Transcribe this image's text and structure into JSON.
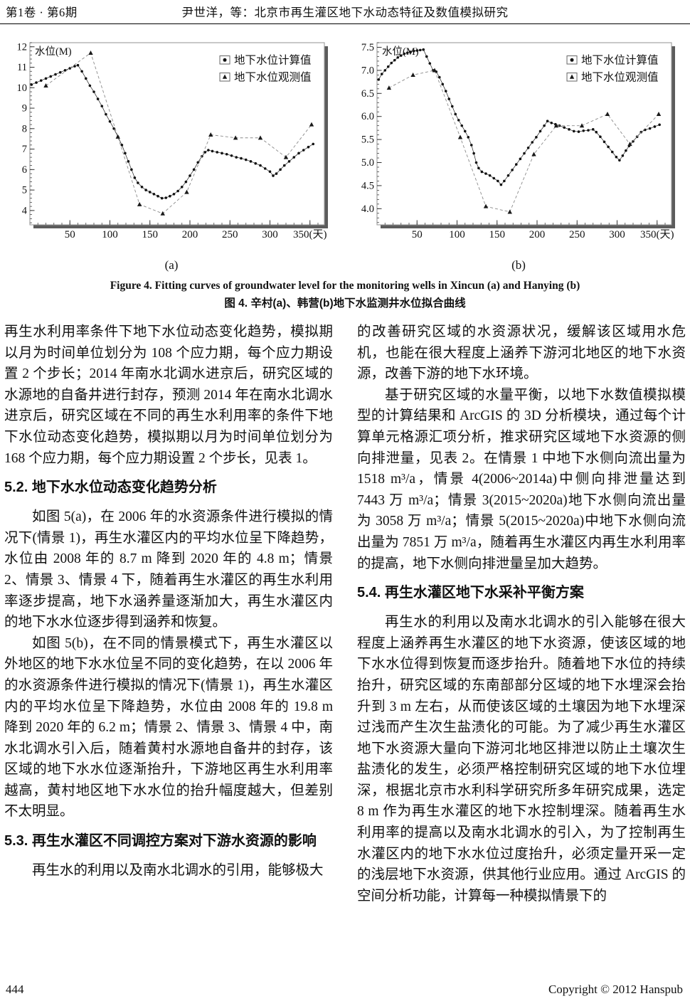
{
  "header": {
    "issue": "第1卷 · 第6期",
    "running_title": "尹世洋，等：北京市再生灌区地下水动态特征及数值模拟研究"
  },
  "figure": {
    "caption_en": "Figure 4. Fitting curves of groundwater level for the monitoring wells in Xincun (a) and Hanying (b)",
    "caption_zh": "图 4. 辛村(a)、韩营(b)地下水监测井水位拟合曲线"
  },
  "colors": {
    "frame": "#9a9a9a",
    "shadow": "#5c5c5c",
    "calculated": "#111111",
    "observed": "#1a1a1a",
    "dash_line": "#8a8a8a",
    "text": "#111111"
  },
  "chart_data": [
    {
      "type": "line",
      "title": "",
      "sublabel": "(a)",
      "ylabel": "水位(M)",
      "xlabel": "天",
      "xlim": [
        0,
        368
      ],
      "ylim": [
        3.3,
        12.2
      ],
      "xticks": [
        50,
        100,
        150,
        200,
        250,
        300,
        350
      ],
      "xtick_labels": [
        "50",
        "100",
        "150",
        "200",
        "250",
        "300",
        "350(天)"
      ],
      "yticks": [
        4,
        5,
        6,
        7,
        8,
        9,
        10,
        11,
        12
      ],
      "ytick_labels": [
        "4",
        "5",
        "6",
        "7",
        "8",
        "9",
        "10",
        "11",
        "12"
      ],
      "x_minor_step": 10,
      "y_minor_step": 0.2,
      "grid": false,
      "legend_position": "upper-right-inside",
      "legend": [
        {
          "marker": "dot",
          "label": "地下水位计算值"
        },
        {
          "marker": "triangle",
          "label": "地下水位观测值"
        }
      ],
      "series": [
        {
          "name": "地下水位计算值",
          "style": "dots",
          "points": [
            [
              2,
              10.15
            ],
            [
              8,
              10.25
            ],
            [
              14,
              10.35
            ],
            [
              20,
              10.45
            ],
            [
              26,
              10.55
            ],
            [
              32,
              10.65
            ],
            [
              38,
              10.75
            ],
            [
              44,
              10.85
            ],
            [
              50,
              10.95
            ],
            [
              56,
              11.05
            ],
            [
              60,
              11.1
            ],
            [
              65,
              10.8
            ],
            [
              70,
              10.45
            ],
            [
              75,
              10.1
            ],
            [
              80,
              9.8
            ],
            [
              85,
              9.45
            ],
            [
              90,
              9.1
            ],
            [
              95,
              8.7
            ],
            [
              100,
              8.35
            ],
            [
              105,
              8.0
            ],
            [
              110,
              7.6
            ],
            [
              115,
              7.2
            ],
            [
              119,
              6.8
            ],
            [
              123,
              6.4
            ],
            [
              127,
              6.0
            ],
            [
              131,
              5.6
            ],
            [
              135,
              5.35
            ],
            [
              140,
              5.15
            ],
            [
              145,
              5.0
            ],
            [
              150,
              4.9
            ],
            [
              155,
              4.8
            ],
            [
              160,
              4.7
            ],
            [
              165,
              4.6
            ],
            [
              170,
              4.62
            ],
            [
              175,
              4.7
            ],
            [
              180,
              4.8
            ],
            [
              185,
              4.95
            ],
            [
              190,
              5.15
            ],
            [
              195,
              5.4
            ],
            [
              200,
              5.7
            ],
            [
              205,
              6.0
            ],
            [
              210,
              6.35
            ],
            [
              215,
              6.65
            ],
            [
              219,
              6.85
            ],
            [
              223,
              6.95
            ],
            [
              228,
              6.9
            ],
            [
              234,
              6.85
            ],
            [
              240,
              6.8
            ],
            [
              246,
              6.75
            ],
            [
              252,
              6.68
            ],
            [
              258,
              6.6
            ],
            [
              264,
              6.55
            ],
            [
              270,
              6.48
            ],
            [
              276,
              6.4
            ],
            [
              282,
              6.3
            ],
            [
              288,
              6.2
            ],
            [
              294,
              6.05
            ],
            [
              300,
              5.9
            ],
            [
              304,
              5.7
            ],
            [
              308,
              5.8
            ],
            [
              313,
              6.0
            ],
            [
              318,
              6.2
            ],
            [
              324,
              6.4
            ],
            [
              330,
              6.6
            ],
            [
              336,
              6.8
            ],
            [
              342,
              6.95
            ],
            [
              348,
              7.1
            ],
            [
              354,
              7.25
            ]
          ]
        },
        {
          "name": "地下水位观测值",
          "style": "dashed-triangles",
          "points": [
            [
              20,
              10.1
            ],
            [
              76,
              11.7
            ],
            [
              110,
              7.6
            ],
            [
              137,
              4.3
            ],
            [
              166,
              3.85
            ],
            [
              196,
              4.9
            ],
            [
              226,
              7.7
            ],
            [
              257,
              7.55
            ],
            [
              288,
              7.55
            ],
            [
              320,
              6.6
            ],
            [
              352,
              8.2
            ]
          ]
        }
      ]
    },
    {
      "type": "line",
      "title": "",
      "sublabel": "(b)",
      "ylabel": "水位(M)",
      "xlabel": "天",
      "xlim": [
        0,
        368
      ],
      "ylim": [
        3.65,
        7.6
      ],
      "xticks": [
        50,
        100,
        150,
        200,
        250,
        300,
        350
      ],
      "xtick_labels": [
        "50",
        "100",
        "150",
        "200",
        "250",
        "300",
        "350(天)"
      ],
      "yticks": [
        4.0,
        4.5,
        5.0,
        5.5,
        6.0,
        6.5,
        7.0,
        7.5
      ],
      "ytick_labels": [
        "4.0",
        "4.5",
        "5.0",
        "5.5",
        "6.0",
        "6.5",
        "7.0",
        "7.5"
      ],
      "x_minor_step": 10,
      "y_minor_step": 0.1,
      "grid": false,
      "legend_position": "upper-right-inside",
      "legend": [
        {
          "marker": "dot",
          "label": "地下水位计算值"
        },
        {
          "marker": "triangle",
          "label": "地下水位观测值"
        }
      ],
      "series": [
        {
          "name": "地下水位计算值",
          "style": "dots",
          "points": [
            [
              2,
              6.8
            ],
            [
              6,
              6.92
            ],
            [
              10,
              7.0
            ],
            [
              14,
              7.08
            ],
            [
              18,
              7.16
            ],
            [
              22,
              7.22
            ],
            [
              26,
              7.28
            ],
            [
              30,
              7.32
            ],
            [
              34,
              7.36
            ],
            [
              38,
              7.38
            ],
            [
              42,
              7.4
            ],
            [
              46,
              7.42
            ],
            [
              50,
              7.43
            ],
            [
              54,
              7.44
            ],
            [
              58,
              7.45
            ],
            [
              62,
              7.3
            ],
            [
              66,
              7.15
            ],
            [
              70,
              7.0
            ],
            [
              74,
              6.97
            ],
            [
              78,
              6.85
            ],
            [
              82,
              6.7
            ],
            [
              86,
              6.55
            ],
            [
              90,
              6.38
            ],
            [
              94,
              6.22
            ],
            [
              98,
              6.05
            ],
            [
              102,
              5.92
            ],
            [
              106,
              5.8
            ],
            [
              110,
              5.68
            ],
            [
              114,
              5.55
            ],
            [
              118,
              5.38
            ],
            [
              121,
              5.2
            ],
            [
              124,
              5.0
            ],
            [
              127,
              4.88
            ],
            [
              131,
              4.8
            ],
            [
              136,
              4.76
            ],
            [
              141,
              4.72
            ],
            [
              146,
              4.66
            ],
            [
              151,
              4.6
            ],
            [
              155,
              4.52
            ],
            [
              159,
              4.6
            ],
            [
              164,
              4.72
            ],
            [
              169,
              4.84
            ],
            [
              174,
              4.96
            ],
            [
              179,
              5.08
            ],
            [
              184,
              5.2
            ],
            [
              189,
              5.32
            ],
            [
              194,
              5.44
            ],
            [
              199,
              5.55
            ],
            [
              204,
              5.68
            ],
            [
              209,
              5.8
            ],
            [
              213,
              5.9
            ],
            [
              218,
              5.86
            ],
            [
              223,
              5.83
            ],
            [
              228,
              5.8
            ],
            [
              234,
              5.76
            ],
            [
              240,
              5.72
            ],
            [
              246,
              5.68
            ],
            [
              252,
              5.67
            ],
            [
              258,
              5.69
            ],
            [
              264,
              5.7
            ],
            [
              270,
              5.72
            ],
            [
              274,
              5.66
            ],
            [
              279,
              5.56
            ],
            [
              284,
              5.45
            ],
            [
              289,
              5.34
            ],
            [
              294,
              5.23
            ],
            [
              299,
              5.12
            ],
            [
              303,
              5.05
            ],
            [
              307,
              5.15
            ],
            [
              311,
              5.26
            ],
            [
              315,
              5.36
            ],
            [
              320,
              5.46
            ],
            [
              325,
              5.56
            ],
            [
              330,
              5.66
            ],
            [
              335,
              5.71
            ],
            [
              341,
              5.74
            ],
            [
              347,
              5.78
            ],
            [
              353,
              5.82
            ]
          ]
        },
        {
          "name": "地下水位观测值",
          "style": "dashed-triangles",
          "points": [
            [
              15,
              6.62
            ],
            [
              45,
              6.9
            ],
            [
              72,
              7.0
            ],
            [
              104,
              5.55
            ],
            [
              136,
              4.05
            ],
            [
              166,
              3.93
            ],
            [
              196,
              5.18
            ],
            [
              224,
              5.8
            ],
            [
              256,
              5.8
            ],
            [
              288,
              6.05
            ],
            [
              316,
              5.4
            ],
            [
              352,
              6.05
            ]
          ]
        }
      ]
    }
  ],
  "sections": {
    "left": [
      {
        "kind": "p",
        "text": "再生水利用率条件下地下水位动态变化趋势，模拟期以月为时间单位划分为 108 个应力期，每个应力期设置 2 个步长；2014 年南水北调水进京后，研究区域的水源地的自备井进行封存，预测 2014 年在南水北调水进京后，研究区域在不同的再生水利用率的条件下地下水位动态变化趋势，模拟期以月为时间单位划分为 168 个应力期，每个应力期设置 2 个步长，见表 1。"
      },
      {
        "kind": "h",
        "text": "5.2. 地下水水位动态变化趋势分析"
      },
      {
        "kind": "pi",
        "text": "如图 5(a)，在 2006 年的水资源条件进行模拟的情况下(情景 1)，再生水灌区内的平均水位呈下降趋势，水位由 2008 年的 8.7 m 降到 2020 年的 4.8 m；情景 2、情景 3、情景 4 下，随着再生水灌区的再生水利用率逐步提高，地下水涵养量逐渐加大，再生水灌区内的地下水水位逐步得到涵养和恢复。"
      },
      {
        "kind": "pi",
        "text": "如图 5(b)，在不同的情景模式下，再生水灌区以外地区的地下水水位呈不同的变化趋势，在以 2006 年的水资源条件进行模拟的情况下(情景 1)，再生水灌区内的平均水位呈下降趋势，水位由 2008 年的 19.8 m 降到 2020 年的 6.2 m；情景 2、情景 3、情景 4 中，南水北调水引入后，随着黄村水源地自备井的封存，该区域的地下水水位逐渐抬升，下游地区再生水利用率越高，黄村地区地下水水位的抬升幅度越大，但差别不太明显。"
      },
      {
        "kind": "h",
        "text": "5.3. 再生水灌区不同调控方案对下游水资源的影响"
      },
      {
        "kind": "pi",
        "text": "再生水的利用以及南水北调水的引用，能够极大"
      }
    ],
    "right": [
      {
        "kind": "p",
        "text": "的改善研究区域的水资源状况，缓解该区域用水危机，也能在很大程度上涵养下游河北地区的地下水资源，改善下游的地下水环境。"
      },
      {
        "kind": "pi",
        "text": "基于研究区域的水量平衡，以地下水数值模拟模型的计算结果和 ArcGIS 的 3D 分析模块，通过每个计算单元格源汇项分析，推求研究区域地下水资源的侧向排泄量，见表 2。在情景 1 中地下水侧向流出量为 1518 m³/a，情景 4(2006~2014a)中侧向排泄量达到 7443 万 m³/a；情景 3(2015~2020a)地下水侧向流出量为 3058 万 m³/a；情景 5(2015~2020a)中地下水侧向流出量为 7851 万 m³/a，随着再生水灌区内再生水利用率的提高，地下水侧向排泄量呈加大趋势。"
      },
      {
        "kind": "h",
        "text": "5.4. 再生水灌区地下水采补平衡方案"
      },
      {
        "kind": "pi",
        "text": "再生水的利用以及南水北调水的引入能够在很大程度上涵养再生水灌区的地下水资源，使该区域的地下水水位得到恢复而逐步抬升。随着地下水位的持续抬升，研究区域的东南部部分区域的地下水埋深会抬升到 3 m 左右，从而使该区域的土壤因为地下水埋深过浅而产生次生盐渍化的可能。为了减少再生水灌区地下水资源大量向下游河北地区排泄以防止土壤次生盐渍化的发生，必须严格控制研究区域的地下水位埋深，根据北京市水利科学研究所多年研究成果，选定 8 m 作为再生水灌区的地下水控制埋深。随着再生水利用率的提高以及南水北调水的引入，为了控制再生水灌区内的地下水水位过度抬升，必须定量开采一定的浅层地下水资源，供其他行业应用。通过 ArcGIS 的空间分析功能，计算每一种模拟情景下的"
      }
    ]
  },
  "footer": {
    "page_number": "444",
    "copyright": "Copyright © 2012 Hanspub"
  }
}
